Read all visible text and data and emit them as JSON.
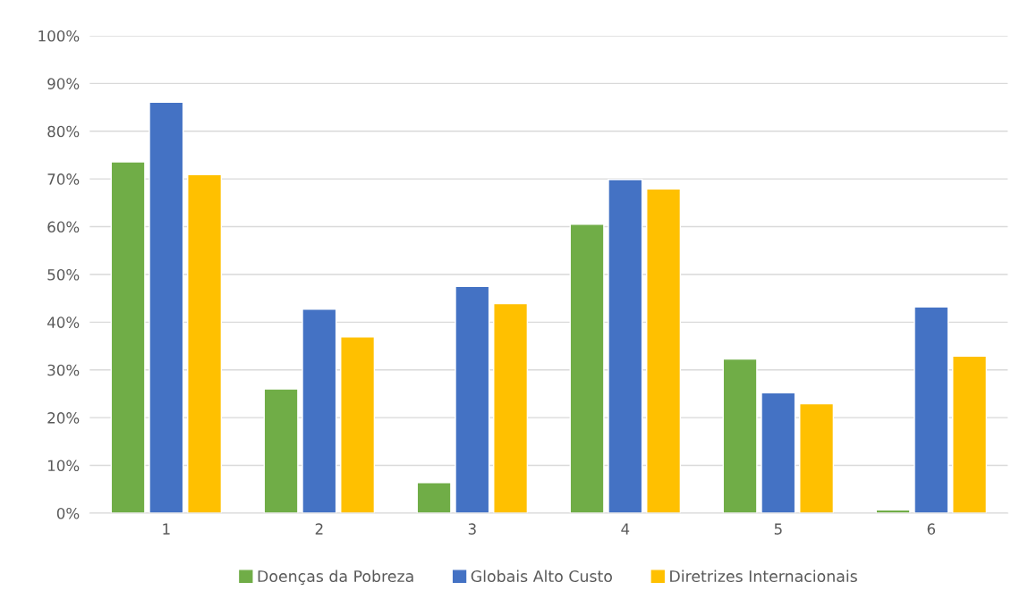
{
  "chart_data": {
    "type": "bar",
    "categories": [
      "1",
      "2",
      "3",
      "4",
      "5",
      "6"
    ],
    "series": [
      {
        "name": "Doenças da Pobreza",
        "color": "#70ad47",
        "values": [
          73.6,
          26.0,
          6.4,
          60.5,
          32.3,
          0.7
        ]
      },
      {
        "name": "Globais Alto Custo",
        "color": "#4472c4",
        "values": [
          86.1,
          42.7,
          47.5,
          69.9,
          25.2,
          43.2
        ]
      },
      {
        "name": "Diretrizes Internacionais",
        "color": "#ffc000",
        "values": [
          70.9,
          36.9,
          43.9,
          67.9,
          22.9,
          32.9
        ]
      }
    ],
    "ylim": [
      0,
      100
    ],
    "yticks": [
      {
        "value": 0,
        "label": "0%"
      },
      {
        "value": 10,
        "label": "10%"
      },
      {
        "value": 20,
        "label": "20%"
      },
      {
        "value": 30,
        "label": "30%"
      },
      {
        "value": 40,
        "label": "40%"
      },
      {
        "value": 50,
        "label": "50%"
      },
      {
        "value": 60,
        "label": "60%"
      },
      {
        "value": 70,
        "label": "70%"
      },
      {
        "value": 80,
        "label": "80%"
      },
      {
        "value": 90,
        "label": "90%"
      },
      {
        "value": 100,
        "label": "100%"
      }
    ],
    "grid": "y",
    "legend": "bottom"
  }
}
